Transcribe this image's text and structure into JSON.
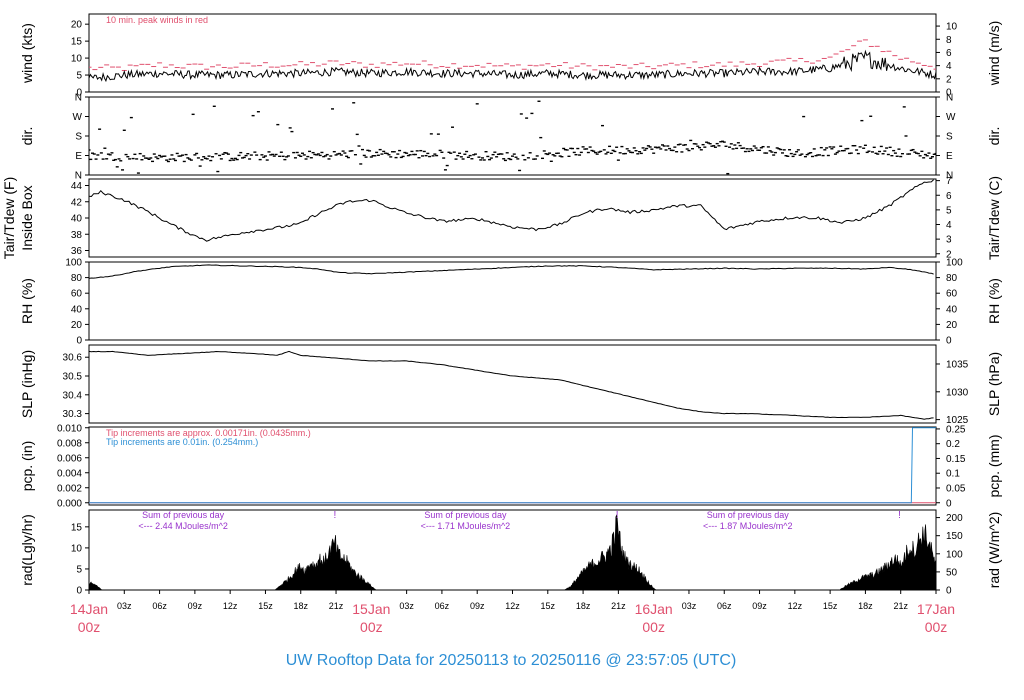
{
  "title": "UW Rooftop Data for 20250113  to  20250116 @ 23:57:05  (UTC)",
  "colors": {
    "ink": "#000000",
    "red": "#e0506e",
    "blue": "#2d8fd5",
    "purple": "#9933cc"
  },
  "time_axis": {
    "range_hours": [
      0,
      72
    ],
    "ticks": [
      {
        "h": 0,
        "label": "14Jan",
        "label2": "00z",
        "major": true
      },
      {
        "h": 3,
        "label": "03z"
      },
      {
        "h": 6,
        "label": "06z"
      },
      {
        "h": 9,
        "label": "09z"
      },
      {
        "h": 12,
        "label": "12z"
      },
      {
        "h": 15,
        "label": "15z"
      },
      {
        "h": 18,
        "label": "18z"
      },
      {
        "h": 21,
        "label": "21z"
      },
      {
        "h": 24,
        "label": "15Jan",
        "label2": "00z",
        "major": true
      },
      {
        "h": 27,
        "label": "03z"
      },
      {
        "h": 30,
        "label": "06z"
      },
      {
        "h": 33,
        "label": "09z"
      },
      {
        "h": 36,
        "label": "12z"
      },
      {
        "h": 39,
        "label": "15z"
      },
      {
        "h": 42,
        "label": "18z"
      },
      {
        "h": 45,
        "label": "21z"
      },
      {
        "h": 48,
        "label": "16Jan",
        "label2": "00z",
        "major": true
      },
      {
        "h": 51,
        "label": "03z"
      },
      {
        "h": 54,
        "label": "06z"
      },
      {
        "h": 57,
        "label": "09z"
      },
      {
        "h": 60,
        "label": "12z"
      },
      {
        "h": 63,
        "label": "15z"
      },
      {
        "h": 66,
        "label": "18z"
      },
      {
        "h": 69,
        "label": "21z"
      },
      {
        "h": 72,
        "label": "17Jan",
        "label2": "00z",
        "major": true
      }
    ]
  },
  "chart_data": [
    {
      "type": "line",
      "key": "wind",
      "ylabel": [
        "wind (kts)"
      ],
      "ylabel_right": [
        "wind (m/s)"
      ],
      "ylim": [
        0,
        23
      ],
      "left_ticks": [
        {
          "v": 0,
          "label": "0"
        },
        {
          "v": 5,
          "label": "5"
        },
        {
          "v": 10,
          "label": "10"
        },
        {
          "v": 15,
          "label": "15"
        },
        {
          "v": 20,
          "label": "20"
        }
      ],
      "right_ticks": [
        {
          "v": 0,
          "label": "0"
        },
        {
          "v": 3.888,
          "label": "2"
        },
        {
          "v": 7.776,
          "label": "4"
        },
        {
          "v": 11.664,
          "label": "6"
        },
        {
          "v": 15.552,
          "label": "8"
        },
        {
          "v": 19.44,
          "label": "10"
        }
      ],
      "annotation": "10 min. peak winds in red",
      "series": [
        {
          "role": "speed",
          "x": [
            0,
            3,
            6,
            9,
            12,
            15,
            18,
            21,
            24,
            27,
            30,
            33,
            36,
            39,
            42,
            45,
            48,
            51,
            54,
            57,
            60,
            63,
            66,
            69,
            72
          ],
          "values": [
            4,
            5,
            5.5,
            5,
            5,
            5.5,
            5.5,
            6,
            5.5,
            6,
            5.5,
            5.5,
            5,
            5.5,
            5,
            5,
            5,
            5.5,
            5.5,
            6,
            6,
            7,
            10,
            7,
            5
          ]
        },
        {
          "role": "peak",
          "x": [
            0,
            3,
            6,
            9,
            12,
            15,
            18,
            21,
            24,
            27,
            30,
            33,
            36,
            39,
            42,
            45,
            48,
            51,
            54,
            57,
            60,
            63,
            66,
            69,
            72
          ],
          "values": [
            7,
            7,
            8,
            7.5,
            7.5,
            8,
            8,
            8.5,
            8,
            8.5,
            8,
            8,
            7.5,
            8,
            7.5,
            7.5,
            7.5,
            8,
            8,
            8.5,
            9,
            10,
            15,
            10,
            7.5
          ]
        }
      ]
    },
    {
      "type": "scatter",
      "key": "dir",
      "ylabel": [
        "dir."
      ],
      "ylabel_right": [
        "dir."
      ],
      "ylim": [
        0,
        360
      ],
      "left_ticks": [
        {
          "v": 0,
          "label": "N"
        },
        {
          "v": 90,
          "label": "E"
        },
        {
          "v": 180,
          "label": "S"
        },
        {
          "v": 270,
          "label": "W"
        },
        {
          "v": 360,
          "label": "N"
        }
      ],
      "right_ticks": [
        {
          "v": 0,
          "label": "N"
        },
        {
          "v": 90,
          "label": "E"
        },
        {
          "v": 180,
          "label": "S"
        },
        {
          "v": 270,
          "label": "W"
        },
        {
          "v": 360,
          "label": "N"
        }
      ],
      "series": [
        {
          "role": "direction",
          "x": [
            0,
            6,
            12,
            18,
            24,
            30,
            36,
            42,
            48,
            54,
            60,
            66,
            72
          ],
          "values": [
            90,
            80,
            85,
            90,
            100,
            95,
            85,
            110,
            120,
            140,
            100,
            120,
            90
          ]
        }
      ]
    },
    {
      "type": "line",
      "key": "temp",
      "ylabel": [
        "Tair/Tdew (F)",
        "Inside Box"
      ],
      "ylabel_right": [
        "Tair/Tdew (C)"
      ],
      "ylim": [
        35.2,
        44.8
      ],
      "left_ticks": [
        {
          "v": 36,
          "label": "36"
        },
        {
          "v": 38,
          "label": "38"
        },
        {
          "v": 40,
          "label": "40"
        },
        {
          "v": 42,
          "label": "42"
        },
        {
          "v": 44,
          "label": "44"
        }
      ],
      "right_ticks": [
        {
          "v": 35.6,
          "label": "2"
        },
        {
          "v": 37.4,
          "label": "3"
        },
        {
          "v": 39.2,
          "label": "4"
        },
        {
          "v": 41,
          "label": "5"
        },
        {
          "v": 42.8,
          "label": "6"
        },
        {
          "v": 44.6,
          "label": "7"
        }
      ],
      "series": [
        {
          "role": "tair",
          "x": [
            0,
            1,
            3,
            5,
            7,
            9,
            10,
            13,
            16,
            18,
            19,
            21,
            22,
            24,
            25,
            27,
            30,
            33,
            36,
            38,
            40,
            42,
            44,
            46,
            48,
            50,
            52,
            54,
            57,
            60,
            62,
            64,
            66,
            68,
            70,
            71,
            72
          ],
          "values": [
            42.6,
            43.2,
            42.2,
            40.8,
            39.2,
            37.8,
            37.3,
            38.2,
            38.8,
            39.3,
            40.2,
            41.5,
            42.0,
            42.2,
            41.6,
            40.6,
            39.6,
            39.9,
            38.9,
            38.6,
            39.2,
            40.6,
            41.2,
            40.7,
            41.0,
            41.5,
            41.5,
            38.6,
            39.6,
            40.1,
            40.0,
            39.4,
            40.0,
            41.5,
            43.5,
            44.4,
            44.7
          ]
        }
      ]
    },
    {
      "type": "line",
      "key": "rh",
      "ylabel": [
        "RH (%)"
      ],
      "ylabel_right": [
        "RH (%)"
      ],
      "ylim": [
        0,
        100
      ],
      "left_ticks": [
        {
          "v": 0,
          "label": "0"
        },
        {
          "v": 20,
          "label": "20"
        },
        {
          "v": 40,
          "label": "40"
        },
        {
          "v": 60,
          "label": "60"
        },
        {
          "v": 80,
          "label": "80"
        },
        {
          "v": 100,
          "label": "100"
        }
      ],
      "right_ticks": [
        {
          "v": 0,
          "label": "0"
        },
        {
          "v": 20,
          "label": "20"
        },
        {
          "v": 40,
          "label": "40"
        },
        {
          "v": 60,
          "label": "60"
        },
        {
          "v": 80,
          "label": "80"
        },
        {
          "v": 100,
          "label": "100"
        }
      ],
      "series": [
        {
          "role": "rh",
          "x": [
            0,
            2,
            4,
            7,
            10,
            13,
            16,
            18,
            20,
            21,
            22,
            24,
            27,
            30,
            33,
            36,
            39,
            42,
            45,
            48,
            51,
            54,
            57,
            60,
            63,
            66,
            68,
            70,
            72
          ],
          "values": [
            79,
            82,
            88,
            94,
            96,
            95,
            94,
            93,
            90,
            87,
            86,
            85,
            87,
            89,
            91,
            93,
            95,
            95,
            93,
            90,
            91,
            92,
            91,
            92,
            92,
            91,
            93,
            90,
            84
          ]
        }
      ]
    },
    {
      "type": "line",
      "key": "slp",
      "ylabel": [
        "SLP (inHg)"
      ],
      "ylabel_right": [
        "SLP (hPa)"
      ],
      "ylim": [
        30.25,
        30.665
      ],
      "left_ticks": [
        {
          "v": 30.3,
          "label": "30.3"
        },
        {
          "v": 30.4,
          "label": "30.4"
        },
        {
          "v": 30.5,
          "label": "30.5"
        },
        {
          "v": 30.6,
          "label": "30.6"
        }
      ],
      "right_ticks": [
        {
          "v": 30.268,
          "label": "1025"
        },
        {
          "v": 30.416,
          "label": "1030"
        },
        {
          "v": 30.564,
          "label": "1035"
        }
      ],
      "series": [
        {
          "role": "slp",
          "x": [
            0,
            2,
            5,
            8,
            11,
            14,
            16,
            17,
            18,
            20,
            22,
            24,
            27,
            30,
            32,
            34,
            36,
            38,
            40,
            42,
            44,
            46,
            48,
            50,
            52,
            54,
            56,
            60,
            63,
            66,
            69,
            70,
            71,
            72
          ],
          "values": [
            30.63,
            30.63,
            30.61,
            30.62,
            30.63,
            30.62,
            30.61,
            30.63,
            30.61,
            30.6,
            30.59,
            30.58,
            30.58,
            30.56,
            30.54,
            30.52,
            30.5,
            30.49,
            30.48,
            30.45,
            30.42,
            30.39,
            30.36,
            30.33,
            30.31,
            30.3,
            30.3,
            30.29,
            30.28,
            30.28,
            30.29,
            30.28,
            30.27,
            30.28
          ]
        }
      ]
    },
    {
      "type": "line",
      "key": "pcp",
      "ylabel": [
        "pcp. (in)"
      ],
      "ylabel_right": [
        "pcp. (mm)"
      ],
      "ylim": [
        -0.0003,
        0.0101
      ],
      "left_ticks": [
        {
          "v": 0,
          "label": "0.000"
        },
        {
          "v": 0.002,
          "label": "0.002"
        },
        {
          "v": 0.004,
          "label": "0.004"
        },
        {
          "v": 0.006,
          "label": "0.006"
        },
        {
          "v": 0.008,
          "label": "0.008"
        },
        {
          "v": 0.01,
          "label": "0.010"
        }
      ],
      "right_ticks": [
        {
          "v": 0,
          "label": "0"
        },
        {
          "v": 0.001969,
          "label": "0.05"
        },
        {
          "v": 0.003937,
          "label": "0.1"
        },
        {
          "v": 0.005906,
          "label": "0.15"
        },
        {
          "v": 0.007874,
          "label": "0.2"
        },
        {
          "v": 0.009843,
          "label": "0.25"
        }
      ],
      "annotation": "Tip increments are approx. 0.00171in. (0.0435mm.)",
      "annotation2": "Tip increments are 0.01in. (0.254mm.)",
      "series": [
        {
          "role": "approx",
          "x": [
            0,
            72
          ],
          "values": [
            0,
            0
          ]
        },
        {
          "role": "gauge",
          "x": [
            0,
            69.9,
            70,
            72
          ],
          "values": [
            0,
            0,
            0.01,
            0.01
          ]
        }
      ]
    },
    {
      "type": "area",
      "key": "rad",
      "ylabel": [
        "rad(Lgly/hr)"
      ],
      "ylabel_right": [
        "rad (W/m^2)"
      ],
      "ylim": [
        0,
        19
      ],
      "left_ticks": [
        {
          "v": 0,
          "label": "0"
        },
        {
          "v": 5,
          "label": "5"
        },
        {
          "v": 10,
          "label": "10"
        },
        {
          "v": 15,
          "label": "15"
        }
      ],
      "right_ticks": [
        {
          "v": 0,
          "label": "0"
        },
        {
          "v": 4.3,
          "label": "50"
        },
        {
          "v": 8.6,
          "label": "100"
        },
        {
          "v": 12.9,
          "label": "150"
        },
        {
          "v": 17.2,
          "label": "200"
        }
      ],
      "annotations": [
        {
          "h": 8,
          "line1": "Sum of previous day",
          "line2": "<--- 2.44 MJoules/m^2"
        },
        {
          "h": 32,
          "line1": "Sum of previous day",
          "line2": "<--- 1.71 MJoules/m^2"
        },
        {
          "h": 56,
          "line1": "Sum of previous day",
          "line2": "<--- 1.87 MJoules/m^2"
        }
      ],
      "markers": [
        {
          "h": 20.9,
          "label": "!"
        },
        {
          "h": 44.9,
          "label": "!"
        },
        {
          "h": 68.9,
          "label": "!"
        }
      ],
      "series": [
        {
          "role": "day1",
          "x": [
            0,
            0.4,
            0.9,
            1.1
          ],
          "values": [
            1.8,
            1.5,
            0.5,
            0
          ]
        },
        {
          "role": "day2",
          "x": [
            15.8,
            16.3,
            17.0,
            17.6,
            18.0,
            18.4,
            18.9,
            19.2,
            19.6,
            20.0,
            20.3,
            20.6,
            20.9,
            21.2,
            21.6,
            22.0,
            22.4,
            22.8,
            23.2,
            23.6,
            24.0,
            24.4
          ],
          "values": [
            0,
            1.2,
            3,
            5,
            6,
            5,
            7,
            6,
            8,
            7,
            9,
            10.5,
            12,
            9,
            8,
            7,
            5,
            4,
            3,
            2,
            1,
            0
          ]
        },
        {
          "role": "day3",
          "x": [
            40.4,
            41.0,
            41.5,
            42.0,
            42.5,
            43.0,
            43.5,
            44.0,
            44.4,
            44.7,
            44.9,
            45.1,
            45.4,
            45.8,
            46.3,
            46.8,
            47.3,
            47.8,
            48.2
          ],
          "values": [
            0,
            1,
            3,
            4.5,
            6,
            7,
            8,
            9,
            11,
            14,
            17.5,
            13,
            9,
            7,
            6,
            5,
            3,
            1,
            0
          ]
        },
        {
          "role": "day4",
          "x": [
            63.8,
            64.3,
            65.0,
            65.6,
            66.2,
            66.8,
            67.3,
            67.8,
            68.3,
            68.7,
            69.0,
            69.4,
            69.8,
            70.2,
            70.6,
            71.0,
            71.4,
            71.8,
            72.0
          ],
          "values": [
            0,
            1,
            2,
            3,
            3.5,
            4,
            5,
            6,
            7.5,
            8,
            6,
            9,
            11,
            10,
            13,
            14.5,
            12,
            8,
            6
          ]
        }
      ]
    }
  ]
}
